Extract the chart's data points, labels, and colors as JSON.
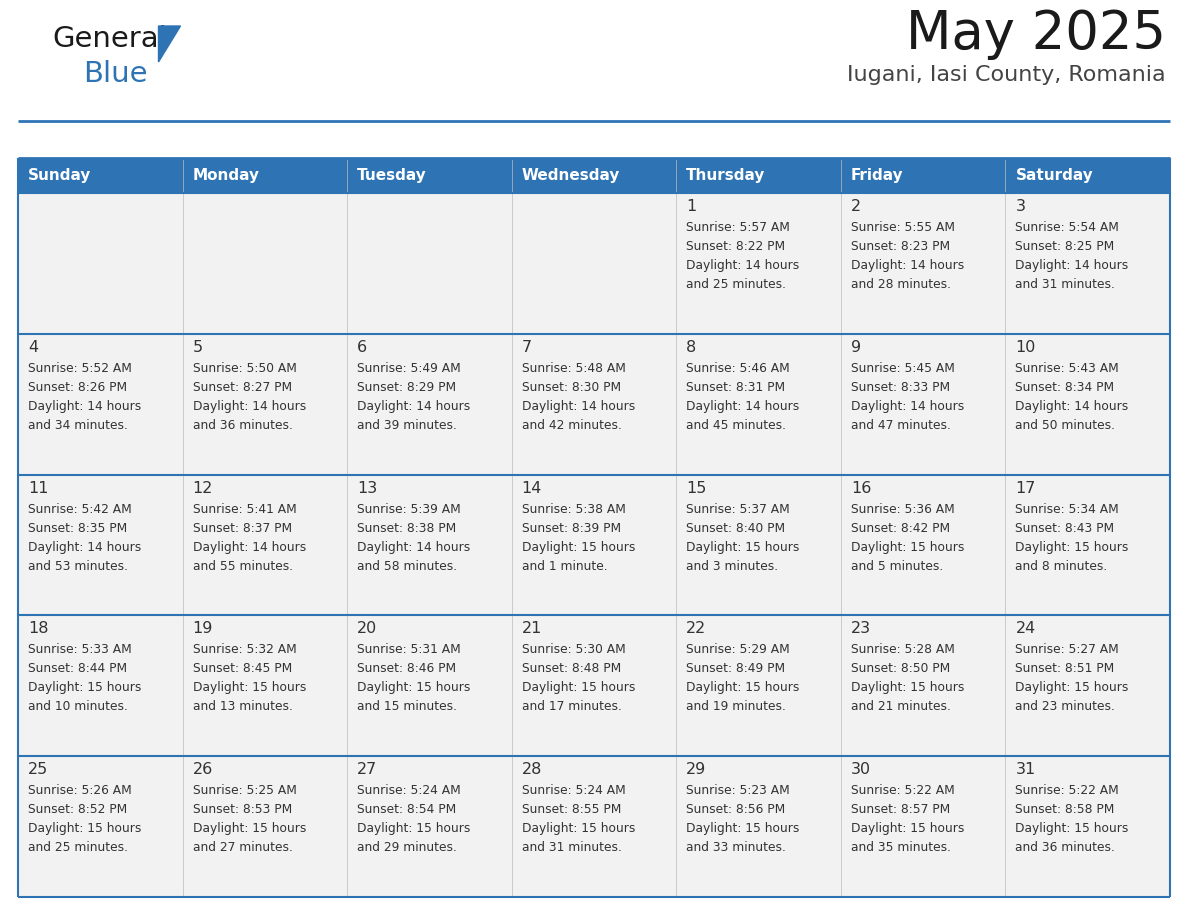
{
  "title": "May 2025",
  "subtitle": "Iugani, Iasi County, Romania",
  "header_bg": "#2e74b5",
  "header_text_color": "#ffffff",
  "day_names": [
    "Sunday",
    "Monday",
    "Tuesday",
    "Wednesday",
    "Thursday",
    "Friday",
    "Saturday"
  ],
  "cell_bg": "#f2f2f2",
  "cell_border_color": "#2e74b5",
  "col_divider_color": "#cccccc",
  "day_number_color": "#333333",
  "info_text_color": "#333333",
  "days": [
    {
      "day": 1,
      "col": 4,
      "row": 0,
      "sunrise": "5:57 AM",
      "sunset": "8:22 PM",
      "daylight_hours": 14,
      "daylight_minutes": 25
    },
    {
      "day": 2,
      "col": 5,
      "row": 0,
      "sunrise": "5:55 AM",
      "sunset": "8:23 PM",
      "daylight_hours": 14,
      "daylight_minutes": 28
    },
    {
      "day": 3,
      "col": 6,
      "row": 0,
      "sunrise": "5:54 AM",
      "sunset": "8:25 PM",
      "daylight_hours": 14,
      "daylight_minutes": 31
    },
    {
      "day": 4,
      "col": 0,
      "row": 1,
      "sunrise": "5:52 AM",
      "sunset": "8:26 PM",
      "daylight_hours": 14,
      "daylight_minutes": 34
    },
    {
      "day": 5,
      "col": 1,
      "row": 1,
      "sunrise": "5:50 AM",
      "sunset": "8:27 PM",
      "daylight_hours": 14,
      "daylight_minutes": 36
    },
    {
      "day": 6,
      "col": 2,
      "row": 1,
      "sunrise": "5:49 AM",
      "sunset": "8:29 PM",
      "daylight_hours": 14,
      "daylight_minutes": 39
    },
    {
      "day": 7,
      "col": 3,
      "row": 1,
      "sunrise": "5:48 AM",
      "sunset": "8:30 PM",
      "daylight_hours": 14,
      "daylight_minutes": 42
    },
    {
      "day": 8,
      "col": 4,
      "row": 1,
      "sunrise": "5:46 AM",
      "sunset": "8:31 PM",
      "daylight_hours": 14,
      "daylight_minutes": 45
    },
    {
      "day": 9,
      "col": 5,
      "row": 1,
      "sunrise": "5:45 AM",
      "sunset": "8:33 PM",
      "daylight_hours": 14,
      "daylight_minutes": 47
    },
    {
      "day": 10,
      "col": 6,
      "row": 1,
      "sunrise": "5:43 AM",
      "sunset": "8:34 PM",
      "daylight_hours": 14,
      "daylight_minutes": 50
    },
    {
      "day": 11,
      "col": 0,
      "row": 2,
      "sunrise": "5:42 AM",
      "sunset": "8:35 PM",
      "daylight_hours": 14,
      "daylight_minutes": 53
    },
    {
      "day": 12,
      "col": 1,
      "row": 2,
      "sunrise": "5:41 AM",
      "sunset": "8:37 PM",
      "daylight_hours": 14,
      "daylight_minutes": 55
    },
    {
      "day": 13,
      "col": 2,
      "row": 2,
      "sunrise": "5:39 AM",
      "sunset": "8:38 PM",
      "daylight_hours": 14,
      "daylight_minutes": 58
    },
    {
      "day": 14,
      "col": 3,
      "row": 2,
      "sunrise": "5:38 AM",
      "sunset": "8:39 PM",
      "daylight_hours": 15,
      "daylight_minutes": 1
    },
    {
      "day": 15,
      "col": 4,
      "row": 2,
      "sunrise": "5:37 AM",
      "sunset": "8:40 PM",
      "daylight_hours": 15,
      "daylight_minutes": 3
    },
    {
      "day": 16,
      "col": 5,
      "row": 2,
      "sunrise": "5:36 AM",
      "sunset": "8:42 PM",
      "daylight_hours": 15,
      "daylight_minutes": 5
    },
    {
      "day": 17,
      "col": 6,
      "row": 2,
      "sunrise": "5:34 AM",
      "sunset": "8:43 PM",
      "daylight_hours": 15,
      "daylight_minutes": 8
    },
    {
      "day": 18,
      "col": 0,
      "row": 3,
      "sunrise": "5:33 AM",
      "sunset": "8:44 PM",
      "daylight_hours": 15,
      "daylight_minutes": 10
    },
    {
      "day": 19,
      "col": 1,
      "row": 3,
      "sunrise": "5:32 AM",
      "sunset": "8:45 PM",
      "daylight_hours": 15,
      "daylight_minutes": 13
    },
    {
      "day": 20,
      "col": 2,
      "row": 3,
      "sunrise": "5:31 AM",
      "sunset": "8:46 PM",
      "daylight_hours": 15,
      "daylight_minutes": 15
    },
    {
      "day": 21,
      "col": 3,
      "row": 3,
      "sunrise": "5:30 AM",
      "sunset": "8:48 PM",
      "daylight_hours": 15,
      "daylight_minutes": 17
    },
    {
      "day": 22,
      "col": 4,
      "row": 3,
      "sunrise": "5:29 AM",
      "sunset": "8:49 PM",
      "daylight_hours": 15,
      "daylight_minutes": 19
    },
    {
      "day": 23,
      "col": 5,
      "row": 3,
      "sunrise": "5:28 AM",
      "sunset": "8:50 PM",
      "daylight_hours": 15,
      "daylight_minutes": 21
    },
    {
      "day": 24,
      "col": 6,
      "row": 3,
      "sunrise": "5:27 AM",
      "sunset": "8:51 PM",
      "daylight_hours": 15,
      "daylight_minutes": 23
    },
    {
      "day": 25,
      "col": 0,
      "row": 4,
      "sunrise": "5:26 AM",
      "sunset": "8:52 PM",
      "daylight_hours": 15,
      "daylight_minutes": 25
    },
    {
      "day": 26,
      "col": 1,
      "row": 4,
      "sunrise": "5:25 AM",
      "sunset": "8:53 PM",
      "daylight_hours": 15,
      "daylight_minutes": 27
    },
    {
      "day": 27,
      "col": 2,
      "row": 4,
      "sunrise": "5:24 AM",
      "sunset": "8:54 PM",
      "daylight_hours": 15,
      "daylight_minutes": 29
    },
    {
      "day": 28,
      "col": 3,
      "row": 4,
      "sunrise": "5:24 AM",
      "sunset": "8:55 PM",
      "daylight_hours": 15,
      "daylight_minutes": 31
    },
    {
      "day": 29,
      "col": 4,
      "row": 4,
      "sunrise": "5:23 AM",
      "sunset": "8:56 PM",
      "daylight_hours": 15,
      "daylight_minutes": 33
    },
    {
      "day": 30,
      "col": 5,
      "row": 4,
      "sunrise": "5:22 AM",
      "sunset": "8:57 PM",
      "daylight_hours": 15,
      "daylight_minutes": 35
    },
    {
      "day": 31,
      "col": 6,
      "row": 4,
      "sunrise": "5:22 AM",
      "sunset": "8:58 PM",
      "daylight_hours": 15,
      "daylight_minutes": 36
    }
  ],
  "num_rows": 5,
  "logo_color_general": "#1a1a1a",
  "logo_color_blue": "#2e74b5"
}
